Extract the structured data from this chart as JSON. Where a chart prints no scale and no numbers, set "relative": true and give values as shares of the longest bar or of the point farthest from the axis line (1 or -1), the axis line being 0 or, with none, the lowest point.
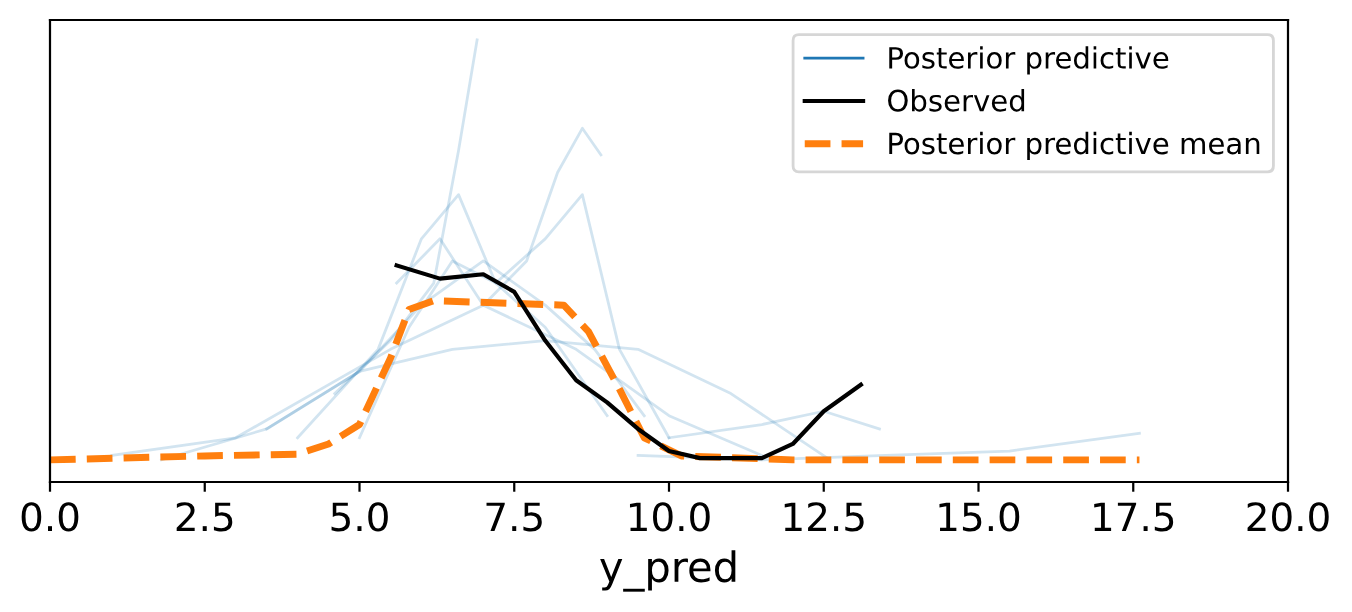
{
  "chart_data": {
    "type": "line",
    "relative": true,
    "xlabel": "y_pred",
    "xlim": [
      0,
      20
    ],
    "xticks": [
      {
        "value": 0,
        "label": "0.0"
      },
      {
        "value": 2.5,
        "label": "2.5"
      },
      {
        "value": 5,
        "label": "5.0"
      },
      {
        "value": 7.5,
        "label": "7.5"
      },
      {
        "value": 10,
        "label": "10.0"
      },
      {
        "value": 12.5,
        "label": "12.5"
      },
      {
        "value": 15,
        "label": "15.0"
      },
      {
        "value": 17.5,
        "label": "17.5"
      },
      {
        "value": 20,
        "label": "20.0"
      }
    ],
    "legend": "top right",
    "grid": false,
    "tick_labels": "x",
    "series": [
      {
        "name": "Posterior predictive",
        "color": "#1f77b4",
        "x": [
          4.6,
          5.5,
          6.2,
          6.6,
          6.9
        ],
        "values": [
          0.2,
          0.32,
          0.45,
          0.75,
          1.0
        ]
      },
      {
        "color": "#1f77b4",
        "x": [
          5.0,
          5.8,
          6.5,
          7.2,
          8.0,
          8.6,
          9.2,
          10.0
        ],
        "values": [
          0.1,
          0.35,
          0.5,
          0.45,
          0.55,
          0.65,
          0.3,
          0.1
        ]
      },
      {
        "color": "#1f77b4",
        "x": [
          3.5,
          5.0,
          6.0,
          7.0,
          8.0,
          8.8,
          9.6
        ],
        "values": [
          0.12,
          0.25,
          0.4,
          0.5,
          0.4,
          0.3,
          0.15
        ]
      },
      {
        "color": "#1f77b4",
        "x": [
          4.0,
          5.3,
          6.0,
          6.6,
          7.2,
          8.0,
          9.0
        ],
        "values": [
          0.1,
          0.3,
          0.55,
          0.65,
          0.45,
          0.35,
          0.15
        ]
      },
      {
        "color": "#1f77b4",
        "x": [
          5.6,
          6.3,
          7.0,
          7.7,
          8.2,
          8.6,
          8.9
        ],
        "values": [
          0.45,
          0.55,
          0.4,
          0.5,
          0.7,
          0.8,
          0.74
        ]
      },
      {
        "color": "#1f77b4",
        "x": [
          1.8,
          3.5,
          5.0,
          6.5,
          8.0,
          9.5,
          11.0,
          12.6
        ],
        "values": [
          0.05,
          0.12,
          0.25,
          0.3,
          0.32,
          0.3,
          0.2,
          0.05
        ]
      },
      {
        "color": "#1f77b4",
        "x": [
          1.0,
          3.0,
          5.5,
          7.0,
          8.5,
          10.0,
          11.5
        ],
        "values": [
          0.06,
          0.1,
          0.3,
          0.4,
          0.3,
          0.15,
          0.06
        ]
      },
      {
        "color": "#1f77b4",
        "x": [
          9.5,
          11.5,
          13.5,
          15.5,
          17.6
        ],
        "values": [
          0.06,
          0.05,
          0.06,
          0.07,
          0.11
        ]
      },
      {
        "color": "#1f77b4",
        "x": [
          10.0,
          11.5,
          12.5,
          13.4
        ],
        "values": [
          0.1,
          0.13,
          0.16,
          0.12
        ]
      },
      {
        "name": "Observed",
        "color": "#000000",
        "line_style": "solid",
        "x": [
          5.6,
          6.3,
          7.0,
          7.5,
          8.0,
          8.5,
          9.0,
          9.5,
          10.0,
          10.5,
          11.5,
          12.0,
          12.5,
          13.1
        ],
        "values": [
          0.49,
          0.46,
          0.47,
          0.43,
          0.32,
          0.23,
          0.18,
          0.12,
          0.07,
          0.054,
          0.054,
          0.086,
          0.16,
          0.22
        ]
      },
      {
        "name": "Posterior predictive mean",
        "color": "#ff7f0e",
        "line_style": "dashed",
        "x": [
          0,
          2.5,
          4.0,
          4.5,
          5.0,
          5.5,
          5.8,
          6.2,
          8.3,
          8.7,
          9.2,
          9.6,
          10.2,
          12.0,
          17.6
        ],
        "values": [
          0.05,
          0.059,
          0.063,
          0.086,
          0.13,
          0.28,
          0.39,
          0.41,
          0.4,
          0.34,
          0.21,
          0.1,
          0.059,
          0.05,
          0.05
        ]
      }
    ]
  }
}
